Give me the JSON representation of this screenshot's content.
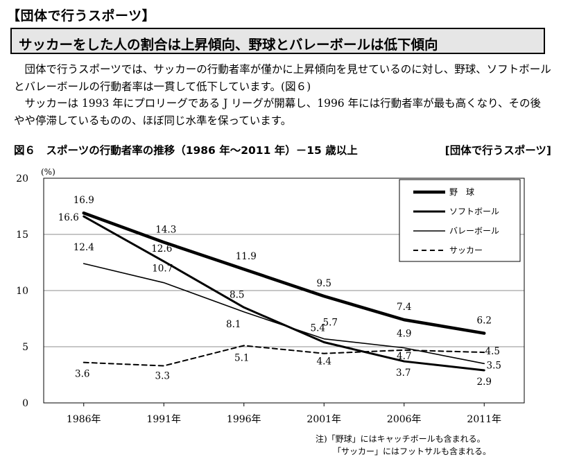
{
  "section_title": "【団体で行うスポーツ】",
  "headline": "サッカーをした人の割合は上昇傾向、野球とバレーボールは低下傾向",
  "paragraphs": [
    "団体で行うスポーツでは、サッカーの行動者率が僅かに上昇傾向を見せているのに対し、野球、ソフトボールとバレーボールの行動者率は一貫して低下しています。(図６)",
    "サッカーは 1993 年にプロリーグである J リーグが開幕し、1996 年には行動者率が最も高くなり、その後やや停滞しているものの、ほぼ同じ水準を保っています。"
  ],
  "figure_caption": "図６　スポーツの行動者率の推移（1986 年～2011 年）－15 歳以上",
  "figure_tag": "[団体で行うスポーツ]",
  "notes": [
    "注)「野球」にはキャッチボールも含まれる。",
    "「サッカー」にはフットサルも含まれる。"
  ],
  "chart_data": {
    "type": "line",
    "y_unit": "(%)",
    "ylim": [
      0,
      20
    ],
    "yticks": [
      0,
      5,
      10,
      15,
      20
    ],
    "categories": [
      "1986年",
      "1991年",
      "1996年",
      "2001年",
      "2006年",
      "2011年"
    ],
    "legend_position": "top-right",
    "grid": true,
    "series": [
      {
        "name": "野　球",
        "values": [
          16.9,
          14.3,
          11.9,
          9.5,
          7.4,
          6.2
        ],
        "style": "thick"
      },
      {
        "name": "ソフトボール",
        "values": [
          16.6,
          12.6,
          8.5,
          5.4,
          3.7,
          2.9
        ],
        "style": "medium"
      },
      {
        "name": "バレーボール",
        "values": [
          12.4,
          10.7,
          8.1,
          5.7,
          4.9,
          3.5
        ],
        "style": "thin"
      },
      {
        "name": "サッカー",
        "values": [
          3.6,
          3.3,
          5.1,
          4.4,
          4.7,
          4.5
        ],
        "style": "dashed"
      }
    ]
  }
}
